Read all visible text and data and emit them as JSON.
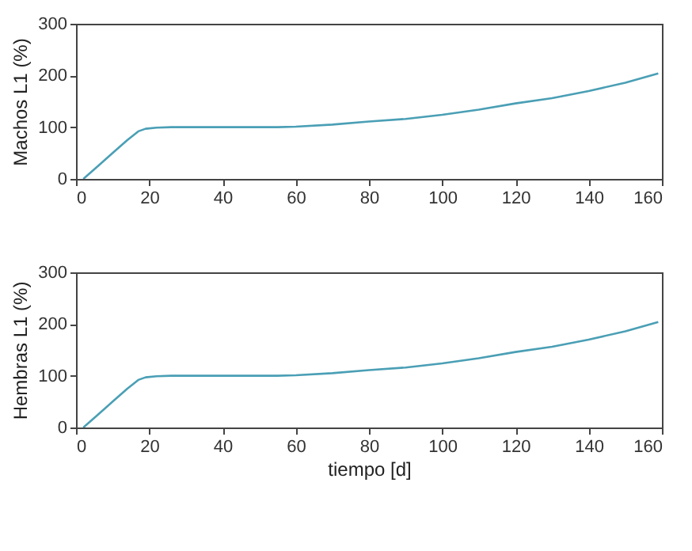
{
  "chart_data": [
    {
      "type": "line",
      "ylabel": "Machos L1 (%)",
      "xlim": [
        0,
        160
      ],
      "ylim": [
        0,
        300
      ],
      "xticks": [
        0,
        20,
        40,
        60,
        80,
        100,
        120,
        140,
        160
      ],
      "yticks": [
        0,
        100,
        200,
        300
      ],
      "grid": false,
      "x": [
        2,
        6,
        10,
        14,
        17,
        19,
        22,
        26,
        40,
        55,
        60,
        70,
        80,
        90,
        100,
        110,
        120,
        130,
        140,
        150,
        159
      ],
      "series": [
        {
          "color": "#4a9fb5",
          "values": [
            0,
            25,
            50,
            75,
            92,
            97,
            99,
            100,
            100,
            100,
            101,
            105,
            111,
            116,
            124,
            134,
            146,
            156,
            170,
            186,
            204
          ]
        }
      ]
    },
    {
      "type": "line",
      "ylabel": "Hembras L1 (%)",
      "xlabel": "tiempo [d]",
      "xlim": [
        0,
        160
      ],
      "ylim": [
        0,
        300
      ],
      "xticks": [
        0,
        20,
        40,
        60,
        80,
        100,
        120,
        140,
        160
      ],
      "yticks": [
        0,
        100,
        200,
        300
      ],
      "grid": false,
      "x": [
        2,
        6,
        10,
        14,
        17,
        19,
        22,
        26,
        40,
        55,
        60,
        70,
        80,
        90,
        100,
        110,
        120,
        130,
        140,
        150,
        159
      ],
      "series": [
        {
          "color": "#4a9fb5",
          "values": [
            0,
            25,
            50,
            75,
            92,
            97,
            99,
            100,
            100,
            100,
            101,
            105,
            111,
            116,
            124,
            134,
            146,
            156,
            170,
            186,
            204
          ]
        }
      ]
    }
  ]
}
